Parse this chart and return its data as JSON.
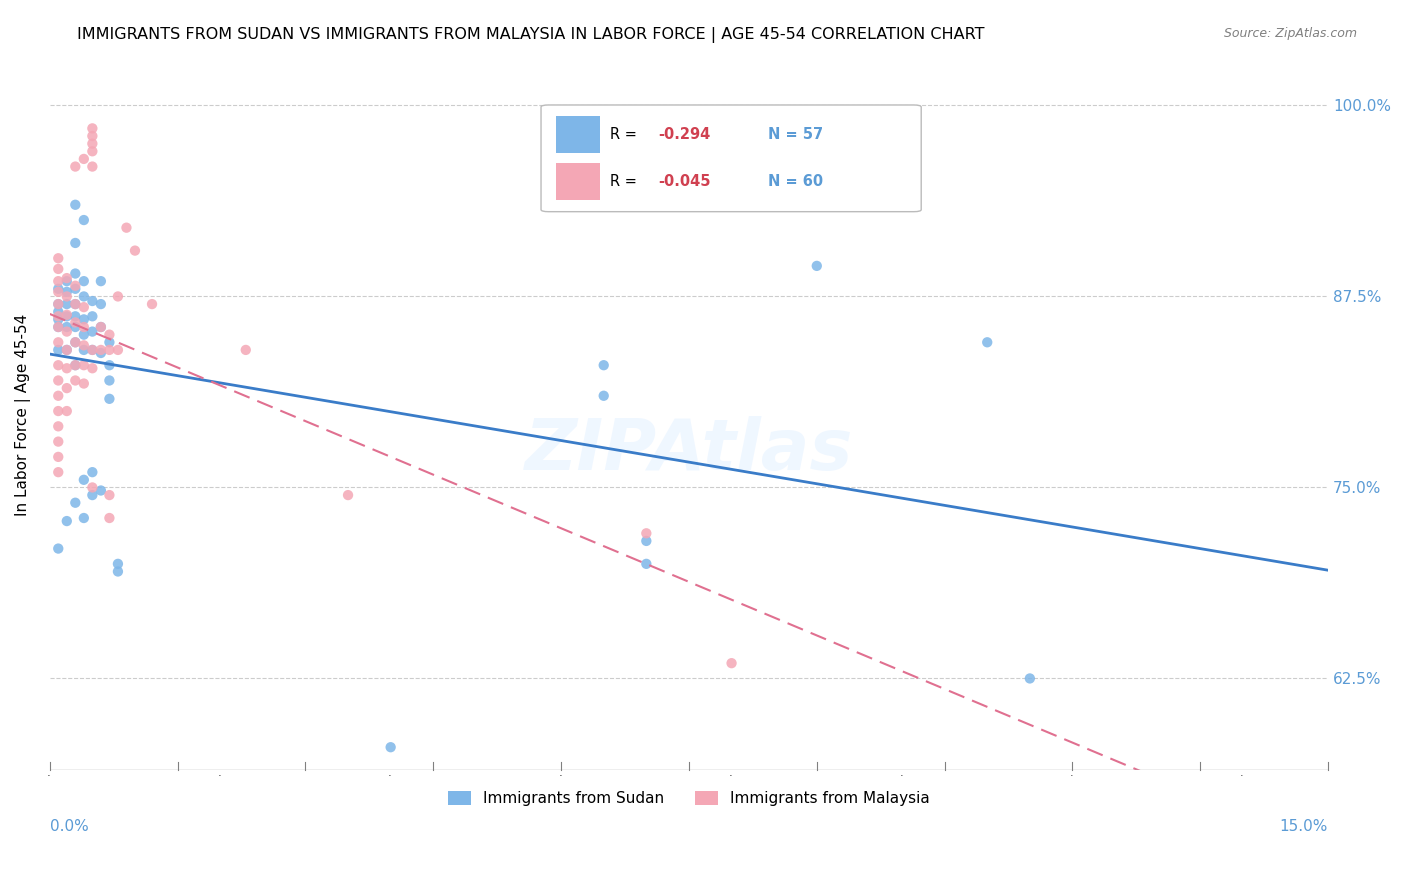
{
  "title": "IMMIGRANTS FROM SUDAN VS IMMIGRANTS FROM MALAYSIA IN LABOR FORCE | AGE 45-54 CORRELATION CHART",
  "source": "Source: ZipAtlas.com",
  "ylabel": "In Labor Force | Age 45-54",
  "ytick_values": [
    1.0,
    0.875,
    0.75,
    0.625
  ],
  "xlim": [
    0.0,
    0.15
  ],
  "ylim": [
    0.565,
    1.03
  ],
  "sudan_color": "#7EB6E8",
  "malaysia_color": "#F4A7B5",
  "sudan_line_color": "#3A7CC8",
  "malaysia_line_color": "#E07090",
  "sudan_label": "Immigrants from Sudan",
  "malaysia_label": "Immigrants from Malaysia",
  "sudan_R": "-0.294",
  "sudan_N": "57",
  "malaysia_R": "-0.045",
  "malaysia_N": "60",
  "axis_color": "#5B9BD5",
  "grid_color": "#CCCCCC",
  "sudan_scatter": [
    [
      0.001,
      0.84
    ],
    [
      0.001,
      0.86
    ],
    [
      0.001,
      0.87
    ],
    [
      0.001,
      0.88
    ],
    [
      0.001,
      0.855
    ],
    [
      0.001,
      0.865
    ],
    [
      0.002,
      0.84
    ],
    [
      0.002,
      0.855
    ],
    [
      0.002,
      0.862
    ],
    [
      0.002,
      0.87
    ],
    [
      0.002,
      0.878
    ],
    [
      0.002,
      0.885
    ],
    [
      0.003,
      0.83
    ],
    [
      0.003,
      0.845
    ],
    [
      0.003,
      0.855
    ],
    [
      0.003,
      0.862
    ],
    [
      0.003,
      0.87
    ],
    [
      0.003,
      0.88
    ],
    [
      0.003,
      0.89
    ],
    [
      0.004,
      0.84
    ],
    [
      0.004,
      0.85
    ],
    [
      0.004,
      0.86
    ],
    [
      0.004,
      0.875
    ],
    [
      0.004,
      0.885
    ],
    [
      0.005,
      0.84
    ],
    [
      0.005,
      0.852
    ],
    [
      0.005,
      0.862
    ],
    [
      0.005,
      0.872
    ],
    [
      0.006,
      0.838
    ],
    [
      0.006,
      0.855
    ],
    [
      0.006,
      0.87
    ],
    [
      0.006,
      0.885
    ],
    [
      0.001,
      0.71
    ],
    [
      0.002,
      0.728
    ],
    [
      0.003,
      0.74
    ],
    [
      0.004,
      0.755
    ],
    [
      0.004,
      0.73
    ],
    [
      0.005,
      0.745
    ],
    [
      0.005,
      0.76
    ],
    [
      0.006,
      0.748
    ],
    [
      0.003,
      0.935
    ],
    [
      0.004,
      0.925
    ],
    [
      0.003,
      0.91
    ],
    [
      0.007,
      0.83
    ],
    [
      0.007,
      0.845
    ],
    [
      0.007,
      0.82
    ],
    [
      0.007,
      0.808
    ],
    [
      0.008,
      0.7
    ],
    [
      0.008,
      0.695
    ],
    [
      0.09,
      0.895
    ],
    [
      0.11,
      0.845
    ],
    [
      0.115,
      0.625
    ],
    [
      0.065,
      0.83
    ],
    [
      0.065,
      0.81
    ],
    [
      0.07,
      0.715
    ],
    [
      0.07,
      0.7
    ],
    [
      0.04,
      0.58
    ]
  ],
  "malaysia_scatter": [
    [
      0.001,
      0.845
    ],
    [
      0.001,
      0.855
    ],
    [
      0.001,
      0.862
    ],
    [
      0.001,
      0.87
    ],
    [
      0.001,
      0.878
    ],
    [
      0.001,
      0.885
    ],
    [
      0.001,
      0.893
    ],
    [
      0.001,
      0.9
    ],
    [
      0.001,
      0.83
    ],
    [
      0.001,
      0.82
    ],
    [
      0.001,
      0.81
    ],
    [
      0.001,
      0.8
    ],
    [
      0.001,
      0.79
    ],
    [
      0.001,
      0.78
    ],
    [
      0.001,
      0.77
    ],
    [
      0.001,
      0.76
    ],
    [
      0.002,
      0.84
    ],
    [
      0.002,
      0.852
    ],
    [
      0.002,
      0.863
    ],
    [
      0.002,
      0.875
    ],
    [
      0.002,
      0.887
    ],
    [
      0.002,
      0.828
    ],
    [
      0.002,
      0.815
    ],
    [
      0.002,
      0.8
    ],
    [
      0.003,
      0.845
    ],
    [
      0.003,
      0.858
    ],
    [
      0.003,
      0.87
    ],
    [
      0.003,
      0.882
    ],
    [
      0.003,
      0.83
    ],
    [
      0.003,
      0.82
    ],
    [
      0.004,
      0.855
    ],
    [
      0.004,
      0.843
    ],
    [
      0.004,
      0.868
    ],
    [
      0.004,
      0.83
    ],
    [
      0.004,
      0.818
    ],
    [
      0.005,
      0.96
    ],
    [
      0.005,
      0.97
    ],
    [
      0.005,
      0.975
    ],
    [
      0.005,
      0.98
    ],
    [
      0.005,
      0.985
    ],
    [
      0.005,
      0.84
    ],
    [
      0.005,
      0.828
    ],
    [
      0.006,
      0.855
    ],
    [
      0.006,
      0.84
    ],
    [
      0.007,
      0.85
    ],
    [
      0.007,
      0.84
    ],
    [
      0.007,
      0.745
    ],
    [
      0.007,
      0.73
    ],
    [
      0.008,
      0.84
    ],
    [
      0.008,
      0.875
    ],
    [
      0.009,
      0.92
    ],
    [
      0.01,
      0.905
    ],
    [
      0.003,
      0.96
    ],
    [
      0.004,
      0.965
    ],
    [
      0.012,
      0.87
    ],
    [
      0.023,
      0.84
    ],
    [
      0.035,
      0.745
    ],
    [
      0.07,
      0.72
    ],
    [
      0.08,
      0.635
    ],
    [
      0.005,
      0.75
    ]
  ]
}
